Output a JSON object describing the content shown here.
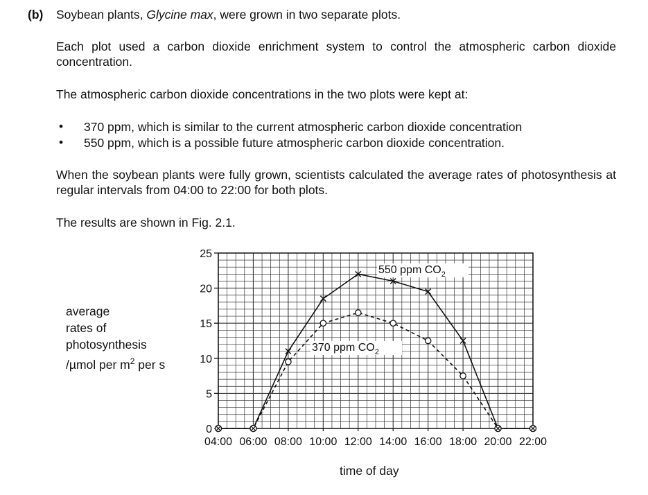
{
  "question": {
    "part_label": "(b)",
    "intro_before": "Soybean plants, ",
    "intro_species": "Glycine max",
    "intro_after": ", were grown in two separate plots.",
    "para1": "Each plot used a carbon dioxide enrichment system to control the atmospheric carbon dioxide concentration.",
    "para2": "The atmospheric carbon dioxide concentrations in the two plots were kept at:",
    "bullets": [
      "370 ppm, which is similar to the current atmospheric carbon dioxide concentration",
      "550 ppm, which is a possible future atmospheric carbon dioxide concentration."
    ],
    "para3": "When the soybean plants were fully grown, scientists calculated the average rates of photosynthesis at regular intervals from 04:00 to 22:00 for both plots.",
    "para4": "The results are shown in Fig. 2.1."
  },
  "chart_data": {
    "type": "line",
    "ylabel_lines": [
      "average",
      "rates of",
      "photosynthesis"
    ],
    "ylabel_unit_prefix": "/µmol per m",
    "ylabel_unit_sup": "2",
    "ylabel_unit_suffix": " per s",
    "xlabel": "time of day",
    "x_ticks": [
      "04:00",
      "06:00",
      "08:00",
      "10:00",
      "12:00",
      "14:00",
      "16:00",
      "18:00",
      "20:00",
      "22:00"
    ],
    "y_ticks": [
      0,
      5,
      10,
      15,
      20,
      25
    ],
    "xlim": [
      4,
      22
    ],
    "ylim": [
      0,
      25
    ],
    "grid": true,
    "series": [
      {
        "name_main": "550 ppm CO",
        "name_sub": "2",
        "style": "solid",
        "marker": "cross",
        "points": [
          [
            4,
            0
          ],
          [
            6,
            0
          ],
          [
            8,
            11
          ],
          [
            10,
            18.5
          ],
          [
            12,
            22
          ],
          [
            14,
            21
          ],
          [
            16,
            19.5
          ],
          [
            18,
            12.5
          ],
          [
            20,
            0
          ],
          [
            22,
            0
          ]
        ]
      },
      {
        "name_main": "370 ppm CO",
        "name_sub": "2",
        "style": "dashed",
        "marker": "circle",
        "points": [
          [
            4,
            0
          ],
          [
            6,
            0
          ],
          [
            8,
            9.5
          ],
          [
            10,
            15
          ],
          [
            12,
            16.5
          ],
          [
            14,
            15
          ],
          [
            16,
            12.5
          ],
          [
            18,
            7.5
          ],
          [
            20,
            0
          ],
          [
            22,
            0
          ]
        ]
      }
    ]
  }
}
